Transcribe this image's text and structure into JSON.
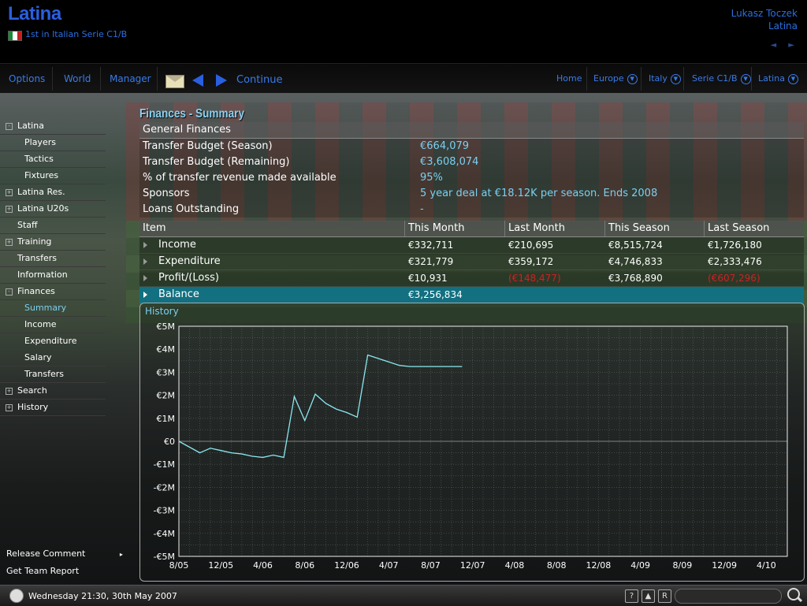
{
  "header": {
    "club_name": "Latina",
    "league_position": "1st in Italian Serie C1/B",
    "flag_colors": [
      "#1a8a3a",
      "#ffffff",
      "#c02020"
    ],
    "manager_name": "Lukasz Toczek",
    "manager_club": "Latina",
    "history_arrows": "◄ ►"
  },
  "navbar": {
    "options": "Options",
    "world": "World",
    "manager": "Manager",
    "continue": "Continue",
    "breadcrumbs": [
      "Home",
      "Europe",
      "Italy",
      "Serie C1/B",
      "Latina"
    ]
  },
  "sidebar": {
    "items": [
      {
        "label": "Latina",
        "box": "-",
        "level": "top"
      },
      {
        "label": "Players",
        "box": "",
        "level": "sub"
      },
      {
        "label": "Tactics",
        "box": "",
        "level": "sub"
      },
      {
        "label": "Fixtures",
        "box": "",
        "level": "sub"
      },
      {
        "label": "Latina Res.",
        "box": "+",
        "level": "top"
      },
      {
        "label": "Latina U20s",
        "box": "+",
        "level": "top"
      },
      {
        "label": "Staff",
        "box": "",
        "level": "top"
      },
      {
        "label": "Training",
        "box": "+",
        "level": "top"
      },
      {
        "label": "Transfers",
        "box": "",
        "level": "top"
      },
      {
        "label": "Information",
        "box": "",
        "level": "top"
      },
      {
        "label": "Finances",
        "box": "-",
        "level": "top"
      },
      {
        "label": "Summary",
        "box": "",
        "level": "sub",
        "selected": true
      },
      {
        "label": "Income",
        "box": "",
        "level": "sub"
      },
      {
        "label": "Expenditure",
        "box": "",
        "level": "sub"
      },
      {
        "label": "Salary",
        "box": "",
        "level": "sub"
      },
      {
        "label": "Transfers",
        "box": "",
        "level": "sub"
      },
      {
        "label": "Search",
        "box": "+",
        "level": "top"
      },
      {
        "label": "History",
        "box": "+",
        "level": "top"
      }
    ],
    "release_comment": "Release Comment",
    "release_arrow": "▸",
    "get_team_report": "Get Team Report"
  },
  "page_title": "Finances - Summary",
  "general_finances": {
    "title": "General Finances",
    "rows": [
      {
        "label": "Transfer Budget (Season)",
        "value": "€664,079"
      },
      {
        "label": "Transfer Budget (Remaining)",
        "value": "€3,608,074"
      },
      {
        "label": "% of transfer revenue made available",
        "value": "95%"
      },
      {
        "label": "Sponsors",
        "value": "5 year deal at €18.12K per season. Ends 2008"
      },
      {
        "label": "Loans Outstanding",
        "value": "-"
      }
    ]
  },
  "finance_table": {
    "headers": [
      "Item",
      "This Month",
      "Last Month",
      "This Season",
      "Last Season"
    ],
    "rows": [
      {
        "item": "Income",
        "this_month": "€332,711",
        "last_month": "€210,695",
        "this_season": "€8,515,724",
        "last_season": "€1,726,180"
      },
      {
        "item": "Expenditure",
        "this_month": "€321,779",
        "last_month": "€359,172",
        "this_season": "€4,746,833",
        "last_season": "€2,333,476"
      },
      {
        "item": "Profit/(Loss)",
        "this_month": "€10,931",
        "last_month": "(€148,477)",
        "this_season": "€3,768,890",
        "last_season": "(€607,296)"
      },
      {
        "item": "Balance",
        "this_month": "€3,256,834",
        "last_month": "",
        "this_season": "",
        "last_season": ""
      }
    ]
  },
  "history": {
    "title": "History"
  },
  "chart_data": {
    "type": "line",
    "title": "History",
    "ylim": [
      -5,
      5
    ],
    "y_ticks": [
      "€5M",
      "€4M",
      "€3M",
      "€2M",
      "€1M",
      "€0",
      "-€1M",
      "-€2M",
      "-€3M",
      "-€4M",
      "-€5M"
    ],
    "x_ticks": [
      "8/05",
      "12/05",
      "4/06",
      "8/06",
      "12/06",
      "4/07",
      "8/07",
      "12/07",
      "4/08",
      "8/08",
      "12/08",
      "4/09",
      "8/09",
      "12/09",
      "4/10"
    ],
    "x_range_months": [
      0,
      58
    ],
    "series": [
      {
        "line_color": "#8ae8f0",
        "x": [
          0,
          2,
          3,
          4,
          5,
          6,
          7,
          8,
          9,
          10,
          11,
          12,
          13,
          14,
          15,
          16,
          17,
          18,
          19,
          20,
          21,
          22,
          23,
          24,
          25,
          26,
          27
        ],
        "values": [
          0.0,
          -0.5,
          -0.3,
          -0.4,
          -0.5,
          -0.55,
          -0.65,
          -0.7,
          -0.6,
          -0.7,
          1.95,
          0.9,
          2.05,
          1.65,
          1.4,
          1.25,
          1.05,
          3.75,
          3.6,
          3.45,
          3.3,
          3.25,
          3.25,
          3.25,
          3.25,
          3.25,
          3.25
        ]
      }
    ],
    "grid": true
  },
  "status_bar": {
    "date": "Wednesday 21:30, 30th May 2007",
    "help_label": "?",
    "up_label": "▲",
    "r_label": "R"
  }
}
